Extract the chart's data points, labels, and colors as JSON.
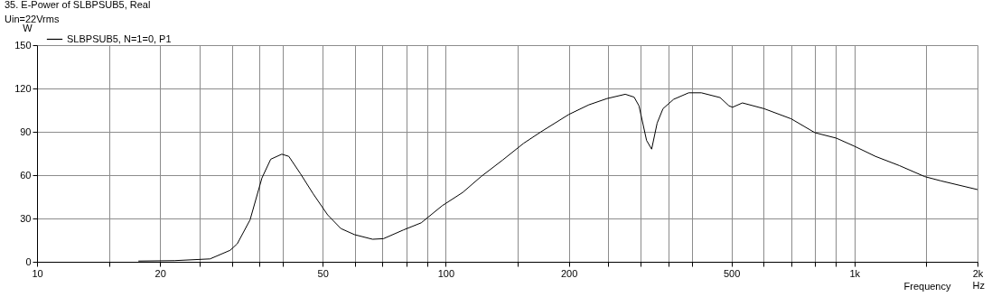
{
  "chart_data": {
    "type": "line",
    "title": "35. E-Power of SLBPSUB5, Real",
    "subtitle": "Uin=22Vrms",
    "ylabel": "W",
    "xlabel": "Frequency",
    "annotations": [
      "Hz"
    ],
    "series": [
      {
        "name": "SLBPSUB5, N=1=0, P1",
        "color": "#000000",
        "x": [
          17.7,
          21.7,
          26.5,
          29.7,
          30.9,
          33.2,
          35.5,
          37.3,
          39.7,
          41.3,
          44.1,
          47.4,
          51.4,
          55.4,
          59.8,
          66.2,
          70.4,
          78.7,
          87.1,
          98,
          110,
          122,
          138,
          155,
          171,
          200,
          224,
          248,
          275,
          289,
          297,
          310,
          319,
          329,
          340,
          361,
          393,
          422,
          469,
          493,
          503,
          532,
          601,
          700,
          800,
          903,
          1000,
          1125,
          1288,
          1485,
          1629,
          2000
        ],
        "values": [
          0.5,
          0.8,
          2,
          8,
          12.5,
          29,
          58,
          71,
          74.5,
          73,
          61,
          47,
          32.5,
          23,
          18.8,
          15.6,
          16,
          22,
          27,
          38.8,
          48,
          59,
          70.6,
          82,
          90,
          102,
          108.7,
          113,
          116,
          114,
          108,
          84,
          78,
          96,
          106,
          112.5,
          117,
          117,
          113.7,
          108,
          107,
          110,
          106,
          99,
          89.4,
          85.6,
          80,
          73,
          66.6,
          59,
          56,
          50
        ]
      }
    ],
    "xlim": [
      10,
      2000
    ],
    "ylim": [
      0,
      150
    ],
    "xticks": [
      10,
      {
        "value": 15,
        "label": null
      },
      20,
      {
        "value": 25,
        "label": null
      },
      {
        "value": 30,
        "label": null
      },
      {
        "value": 35,
        "label": null
      },
      {
        "value": 40,
        "label": null
      },
      50,
      {
        "value": 60,
        "label": null
      },
      {
        "value": 70,
        "label": null
      },
      {
        "value": 80,
        "label": null
      },
      {
        "value": 90,
        "label": null
      },
      100,
      {
        "value": 150,
        "label": null
      },
      200,
      {
        "value": 250,
        "label": null
      },
      {
        "value": 300,
        "label": null
      },
      {
        "value": 350,
        "label": null
      },
      {
        "value": 400,
        "label": null
      },
      500,
      {
        "value": 600,
        "label": null
      },
      {
        "value": 700,
        "label": null
      },
      {
        "value": 800,
        "label": null
      },
      {
        "value": 900,
        "label": null
      },
      {
        "value": 1000,
        "label": "1k"
      },
      {
        "value": 1500,
        "label": null
      },
      {
        "value": 2000,
        "label": "2k"
      }
    ],
    "yticks": [
      0,
      30,
      60,
      90,
      120,
      150
    ],
    "log": "x",
    "grid": true,
    "legend": "top left",
    "marker": "none",
    "line_style": "solid"
  }
}
